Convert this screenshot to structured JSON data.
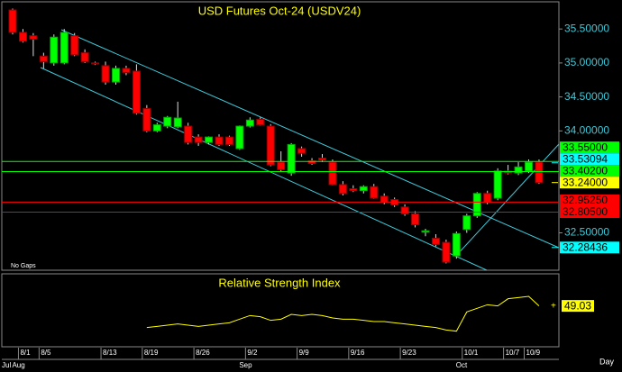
{
  "chart_data": [
    {
      "type": "candlestick",
      "title": "USD Futures Oct-24 (USDV24)",
      "annotation": "No Gaps",
      "x_unit": "Day",
      "categories": [
        null,
        "8/1",
        null,
        "8/5",
        null,
        null,
        null,
        null,
        null,
        "8/13",
        null,
        null,
        null,
        "8/19",
        null,
        null,
        null,
        null,
        "8/26",
        null,
        null,
        null,
        null,
        "9/2",
        null,
        null,
        null,
        null,
        "9/9",
        null,
        null,
        null,
        null,
        "9/16",
        null,
        null,
        null,
        null,
        "9/23",
        null,
        null,
        null,
        null,
        null,
        "10/1",
        null,
        null,
        null,
        "10/7",
        null,
        "10/9",
        null
      ],
      "months": [
        "Jul",
        "Aug",
        null,
        null,
        null,
        null,
        null,
        null,
        null,
        null,
        null,
        null,
        null,
        null,
        null,
        null,
        null,
        null,
        null,
        null,
        null,
        null,
        null,
        "Sep",
        null,
        null,
        null,
        null,
        null,
        null,
        null,
        null,
        null,
        null,
        null,
        null,
        null,
        null,
        null,
        null,
        null,
        null,
        null,
        null,
        "Oct",
        null,
        null,
        null,
        null,
        null,
        null,
        null
      ],
      "open": [
        35.78,
        35.45,
        35.4,
        35.1,
        35.0,
        35.0,
        35.4,
        35.15,
        35.0,
        34.96,
        34.72,
        34.92,
        34.88,
        34.33,
        34.0,
        34.07,
        34.06,
        34.07,
        33.91,
        33.83,
        33.91,
        33.91,
        33.74,
        34.07,
        34.17,
        34.07,
        33.54,
        33.38,
        33.74,
        33.56,
        33.6,
        33.54,
        33.21,
        33.15,
        33.12,
        33.18,
        33.04,
        32.99,
        32.88,
        32.78,
        32.51,
        32.42,
        32.36,
        32.16,
        32.55,
        32.75,
        33.08,
        33.01,
        33.41,
        33.38,
        33.41,
        33.54
      ],
      "high": [
        35.8,
        35.5,
        35.44,
        35.15,
        35.42,
        35.5,
        35.44,
        35.2,
        35.02,
        35.02,
        34.96,
        34.96,
        34.98,
        34.38,
        34.12,
        34.22,
        34.43,
        34.12,
        33.95,
        33.92,
        33.95,
        33.93,
        34.08,
        34.2,
        34.2,
        34.1,
        33.7,
        33.82,
        33.77,
        33.6,
        33.66,
        33.58,
        33.26,
        33.2,
        33.2,
        33.22,
        33.08,
        33.02,
        32.92,
        32.82,
        32.56,
        32.48,
        32.4,
        32.52,
        32.78,
        33.1,
        33.12,
        33.45,
        33.5,
        33.54,
        33.58,
        33.58
      ],
      "low": [
        35.42,
        35.3,
        35.1,
        34.92,
        34.96,
        34.98,
        35.1,
        35.0,
        34.97,
        34.68,
        34.68,
        34.82,
        34.24,
        33.98,
        33.98,
        34.04,
        34.04,
        33.8,
        33.78,
        33.8,
        33.78,
        33.78,
        33.72,
        34.05,
        34.08,
        33.48,
        33.4,
        33.34,
        33.62,
        33.5,
        33.54,
        33.2,
        33.05,
        33.1,
        33.08,
        33.0,
        32.92,
        32.88,
        32.75,
        32.58,
        32.45,
        32.3,
        32.05,
        32.12,
        32.5,
        32.72,
        32.92,
        32.98,
        33.36,
        33.35,
        33.38,
        33.22
      ],
      "close": [
        35.45,
        35.32,
        35.35,
        35.02,
        35.38,
        35.45,
        35.12,
        35.02,
        34.99,
        34.72,
        34.92,
        34.86,
        34.26,
        34.0,
        34.09,
        34.2,
        34.19,
        33.83,
        33.83,
        33.91,
        33.8,
        33.8,
        34.07,
        34.16,
        34.09,
        33.5,
        33.43,
        33.8,
        33.67,
        33.52,
        33.57,
        33.21,
        33.08,
        33.12,
        33.18,
        33.01,
        32.95,
        32.91,
        32.78,
        32.62,
        32.53,
        32.33,
        32.07,
        32.49,
        32.75,
        33.08,
        32.95,
        33.41,
        33.38,
        33.47,
        33.54,
        33.24
      ],
      "up_color": "#00ff00",
      "down_color": "#ff0000",
      "ylim": [
        31.95,
        35.9
      ],
      "yticks": [
        {
          "value": 32.5,
          "label": "32.50000"
        },
        {
          "value": 34.0,
          "label": "34.00000"
        },
        {
          "value": 34.5,
          "label": "34.50000"
        },
        {
          "value": 35.0,
          "label": "35.00000"
        },
        {
          "value": 35.5,
          "label": "35.50000"
        }
      ],
      "levels": [
        {
          "value": 33.55,
          "label": "33.55000",
          "color": "#00ff00",
          "style": "line"
        },
        {
          "value": 33.53094,
          "label": "33.53094",
          "color": "#00ffff",
          "style": "label"
        },
        {
          "value": 33.402,
          "label": "33.40200",
          "color": "#00ff00",
          "style": "line"
        },
        {
          "value": 33.24,
          "label": "33.24000",
          "color": "#ffff00",
          "style": "label"
        },
        {
          "value": 32.9525,
          "label": "32.95250",
          "color": "#ff0000",
          "style": "line"
        },
        {
          "value": 32.805,
          "label": "32.80500",
          "color": "#ff0000",
          "style": "line"
        },
        {
          "value": 32.28436,
          "label": "32.28436",
          "color": "#00ffff",
          "style": "label"
        }
      ]
    },
    {
      "type": "line",
      "title": "Relative Strength Index",
      "color": "#ffff00",
      "ylim": [
        15,
        75
      ],
      "values": [
        null,
        null,
        null,
        null,
        null,
        null,
        null,
        null,
        null,
        null,
        null,
        null,
        null,
        31,
        32,
        33,
        34,
        33,
        32,
        33,
        34,
        35,
        38,
        41,
        40,
        37,
        38,
        42,
        41,
        42,
        41,
        39,
        38,
        38,
        37,
        36,
        36,
        35,
        34,
        33,
        32,
        31,
        29,
        28,
        44,
        47,
        50,
        49,
        55,
        56,
        57,
        49.03
      ]
    }
  ]
}
